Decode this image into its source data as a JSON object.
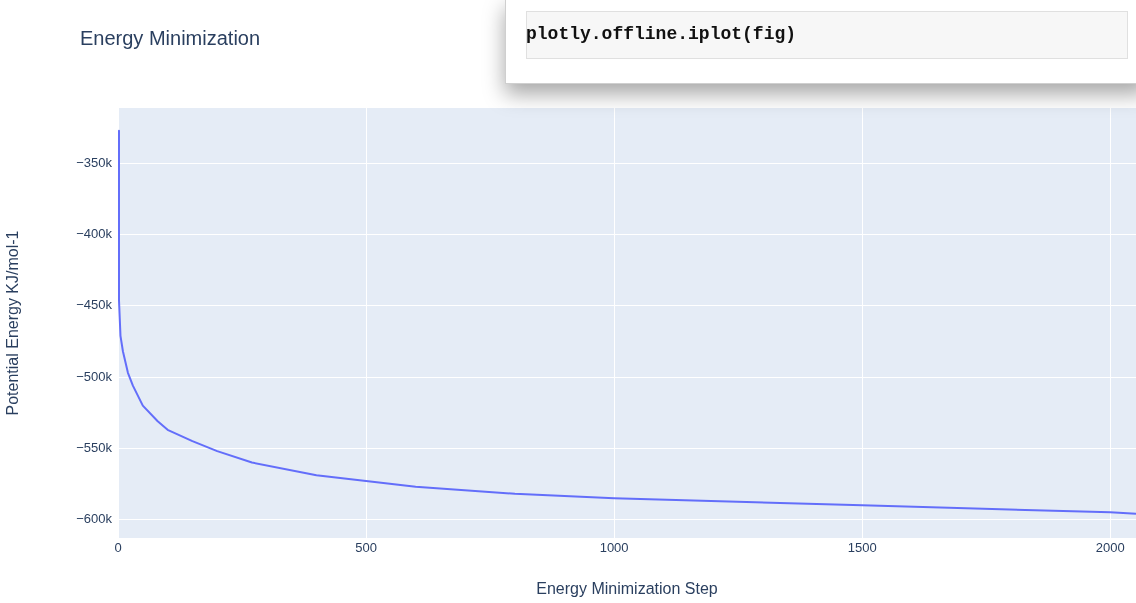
{
  "chart_data": {
    "type": "line",
    "title": "Energy Minimization",
    "xlabel": "Energy Minimization Step",
    "ylabel": "Potential Energy KJ/mol-1",
    "annotations": [
      "plotly.offline.iplot(fig)"
    ],
    "x": [
      0,
      2,
      5,
      10,
      20,
      30,
      50,
      80,
      100,
      150,
      200,
      270,
      400,
      500,
      600,
      800,
      1000,
      1500,
      2000,
      2052
    ],
    "series": [
      {
        "color": "#636efa",
        "values": [
          -327000,
          -446000,
          -471000,
          -482000,
          -497000,
          -506000,
          -520000,
          -531000,
          -537000,
          -545000,
          -552000,
          -560000,
          -569000,
          -573000,
          -577000,
          -582000,
          -585000,
          -590000,
          -595000,
          -596000
        ]
      }
    ],
    "xlim": [
      0,
      2052
    ],
    "ylim": [
      -613000,
      -311000
    ],
    "xticks": [
      0,
      500,
      1000,
      1500,
      2000
    ],
    "yticks": [
      {
        "value": -350000,
        "label": "−350k"
      },
      {
        "value": -400000,
        "label": "−400k"
      },
      {
        "value": -450000,
        "label": "−450k"
      },
      {
        "value": -500000,
        "label": "−500k"
      },
      {
        "value": -550000,
        "label": "−550k"
      },
      {
        "value": -600000,
        "label": "−600k"
      }
    ],
    "grid": true,
    "legend": false,
    "marker": "none",
    "line_style": "solid"
  }
}
